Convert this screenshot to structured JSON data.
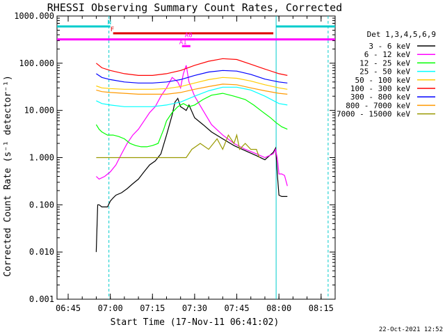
{
  "chart_data": {
    "type": "line",
    "title": "RHESSI Observing Summary Count Rates, Corrected",
    "xlabel": "Start Time (17-Nov-11 06:41:02)",
    "ylabel": "Corrected Count Rate (s⁻¹ detector⁻¹)",
    "yscale": "log",
    "ylim": [
      0.001,
      1000
    ],
    "xlim": [
      "06:41:02",
      "08:20:00"
    ],
    "x_ticks": [
      "06:45",
      "07:00",
      "07:15",
      "07:30",
      "07:45",
      "08:00",
      "08:15"
    ],
    "y_ticks": [
      "0.001",
      "0.010",
      "0.100",
      "1.000",
      "10.000",
      "100.000",
      "1000.000"
    ],
    "legend_title": "Det 1,3,4,5,6,9",
    "legend_position": "right",
    "footer_date": "22-Oct-2021 12:52",
    "series": [
      {
        "name": "3 - 6 keV",
        "color": "#000000",
        "x": [
          "06:55:00",
          "06:55:30",
          "06:56:00",
          "06:57:00",
          "06:58:00",
          "06:59:00",
          "07:00:00",
          "07:01:00",
          "07:02:00",
          "07:04:00",
          "07:06:00",
          "07:08:00",
          "07:10:00",
          "07:12:00",
          "07:14:00",
          "07:16:00",
          "07:18:00",
          "07:20:00",
          "07:22:00",
          "07:23:00",
          "07:24:00",
          "07:25:00",
          "07:26:00",
          "07:27:00",
          "07:28:00",
          "07:30:00",
          "07:33:00",
          "07:36:00",
          "07:40:00",
          "07:44:00",
          "07:48:00",
          "07:52:00",
          "07:55:00",
          "07:58:00",
          "07:58:50",
          "07:59:30",
          "08:00:00",
          "08:01:00",
          "08:02:00",
          "08:03:00"
        ],
        "y": [
          0.01,
          0.1,
          0.1,
          0.09,
          0.09,
          0.09,
          0.12,
          0.14,
          0.16,
          0.18,
          0.22,
          0.28,
          0.35,
          0.5,
          0.7,
          0.85,
          1.2,
          3,
          8,
          15,
          18,
          12,
          11,
          10,
          13,
          7,
          5,
          3.5,
          2.5,
          1.8,
          1.4,
          1.1,
          0.9,
          1.3,
          1.6,
          0.4,
          0.16,
          0.15,
          0.15,
          0.15
        ]
      },
      {
        "name": "6 - 12 keV",
        "color": "#ff00ff",
        "x": [
          "06:55:00",
          "06:56:00",
          "06:58:00",
          "07:00:00",
          "07:02:00",
          "07:04:00",
          "07:06:00",
          "07:08:00",
          "07:10:00",
          "07:12:00",
          "07:14:00",
          "07:16:00",
          "07:18:00",
          "07:20:00",
          "07:22:00",
          "07:24:00",
          "07:25:00",
          "07:26:00",
          "07:27:00",
          "07:28:00",
          "07:30:00",
          "07:33:00",
          "07:36:00",
          "07:40:00",
          "07:44:00",
          "07:48:00",
          "07:52:00",
          "07:55:00",
          "07:58:00",
          "07:58:50",
          "07:59:30",
          "08:00:00",
          "08:01:00",
          "08:02:00",
          "08:03:00"
        ],
        "y": [
          0.4,
          0.35,
          0.4,
          0.5,
          0.7,
          1.2,
          2,
          3,
          4,
          6,
          9,
          12,
          20,
          30,
          50,
          40,
          30,
          60,
          90,
          40,
          20,
          10,
          5,
          3,
          2,
          1.5,
          1.2,
          1,
          1.2,
          1.5,
          0.9,
          0.45,
          0.45,
          0.42,
          0.25
        ]
      },
      {
        "name": "12 - 25 keV",
        "color": "#00ff00",
        "x": [
          "06:55:00",
          "06:56:00",
          "06:57:00",
          "06:59:00",
          "07:01:00",
          "07:03:00",
          "07:05:00",
          "07:07:00",
          "07:09:00",
          "07:11:00",
          "07:13:00",
          "07:15:00",
          "07:17:00",
          "07:19:00",
          "07:20:00",
          "07:22:00",
          "07:24:00",
          "07:26:00",
          "07:28:00",
          "07:30:00",
          "07:33:00",
          "07:36:00",
          "07:40:00",
          "07:44:00",
          "07:48:00",
          "07:51:00",
          "07:54:00",
          "07:57:00",
          "07:59:00",
          "08:01:00",
          "08:03:00"
        ],
        "y": [
          5,
          4,
          3.5,
          3,
          3,
          2.8,
          2.5,
          2,
          1.8,
          1.7,
          1.7,
          1.8,
          2,
          4,
          6,
          9,
          12,
          14,
          12,
          13,
          17,
          21,
          23,
          20,
          17,
          13,
          9.5,
          7,
          5.5,
          4.5,
          4
        ]
      },
      {
        "name": "25 - 50 keV",
        "color": "#00ffff",
        "x": [
          "06:55:00",
          "06:57:00",
          "07:00:00",
          "07:05:00",
          "07:10:00",
          "07:15:00",
          "07:20:00",
          "07:25:00",
          "07:30:00",
          "07:35:00",
          "07:40:00",
          "07:45:00",
          "07:50:00",
          "07:55:00",
          "08:00:00",
          "08:03:00"
        ],
        "y": [
          16,
          14,
          13,
          12,
          12,
          12,
          13,
          15,
          20,
          26,
          31,
          31,
          27,
          20,
          14,
          13
        ]
      },
      {
        "name": "50 - 100 keV",
        "color": "#ffcc00",
        "x": [
          "06:55:00",
          "06:57:00",
          "07:00:00",
          "07:05:00",
          "07:10:00",
          "07:15:00",
          "07:20:00",
          "07:25:00",
          "07:30:00",
          "07:35:00",
          "07:40:00",
          "07:45:00",
          "07:50:00",
          "07:55:00",
          "08:00:00",
          "08:03:00"
        ],
        "y": [
          33,
          30,
          29,
          28,
          28,
          28,
          29,
          32,
          38,
          45,
          50,
          48,
          42,
          35,
          30,
          28
        ]
      },
      {
        "name": "100 - 300 keV",
        "color": "#ff0000",
        "x": [
          "06:55:00",
          "06:57:00",
          "07:00:00",
          "07:05:00",
          "07:10:00",
          "07:15:00",
          "07:20:00",
          "07:25:00",
          "07:30:00",
          "07:35:00",
          "07:40:00",
          "07:45:00",
          "07:50:00",
          "07:55:00",
          "08:00:00",
          "08:03:00"
        ],
        "y": [
          100,
          80,
          70,
          60,
          55,
          55,
          60,
          70,
          90,
          110,
          125,
          120,
          95,
          75,
          60,
          55
        ]
      },
      {
        "name": "300 - 800 keV",
        "color": "#0000ff",
        "x": [
          "06:55:00",
          "06:57:00",
          "07:00:00",
          "07:05:00",
          "07:10:00",
          "07:15:00",
          "07:20:00",
          "07:25:00",
          "07:30:00",
          "07:35:00",
          "07:40:00",
          "07:45:00",
          "07:50:00",
          "07:55:00",
          "08:00:00",
          "08:03:00"
        ],
        "y": [
          60,
          50,
          45,
          40,
          38,
          38,
          40,
          45,
          55,
          65,
          70,
          68,
          58,
          46,
          40,
          38
        ]
      },
      {
        "name": "800 - 7000 keV",
        "color": "#ff9900",
        "x": [
          "06:55:00",
          "06:57:00",
          "07:00:00",
          "07:05:00",
          "07:10:00",
          "07:15:00",
          "07:20:00",
          "07:25:00",
          "07:30:00",
          "07:35:00",
          "07:40:00",
          "07:45:00",
          "07:50:00",
          "07:55:00",
          "08:00:00",
          "08:03:00"
        ],
        "y": [
          27,
          25,
          24,
          23,
          22,
          22,
          22,
          24,
          28,
          32,
          36,
          35,
          30,
          26,
          23,
          22
        ]
      },
      {
        "name": "7000 - 15000 keV",
        "color": "#999900",
        "x": [
          "06:55:00",
          "06:58:00",
          "07:00:00",
          "07:27:00",
          "07:29:00",
          "07:32:00",
          "07:35:00",
          "07:38:00",
          "07:40:00",
          "07:42:00",
          "07:44:00",
          "07:45:00",
          "07:46:00",
          "07:48:00",
          "07:50:00",
          "07:52:00",
          "07:53:00"
        ],
        "y": [
          1,
          1,
          1,
          1,
          1.5,
          2,
          1.5,
          2.5,
          1.5,
          3,
          2,
          3,
          1.5,
          2,
          1.5,
          1.5,
          1
        ]
      }
    ],
    "annotations": [
      {
        "label": "N",
        "color": "#00cccc",
        "intervals": [
          [
            "06:41:02",
            "07:00:00"
          ],
          [
            "07:59:00",
            "08:20:00"
          ]
        ],
        "y": 600
      },
      {
        "label": "F",
        "color": "#dd0000",
        "intervals": [
          [
            "07:01:00",
            "07:58:00"
          ]
        ],
        "y": 430
      },
      {
        "label": "",
        "color": "#ff00ff",
        "intervals": [
          [
            "06:41:02",
            "08:20:00"
          ]
        ],
        "y": 320
      },
      {
        "label": "A1",
        "color": "#ff00ff",
        "intervals": [
          [
            "07:25:30",
            "07:28:30"
          ]
        ],
        "y": 230
      },
      {
        "label": "A0",
        "color": "#ff00ff",
        "intervals": [
          [
            "07:27:30",
            "07:30:00"
          ]
        ],
        "y": 320
      }
    ],
    "vlines": [
      {
        "x": "06:59:30",
        "color": "#00cccc",
        "style": "dashed"
      },
      {
        "x": "07:59:00",
        "color": "#00cccc",
        "style": "solid"
      },
      {
        "x": "08:17:30",
        "color": "#00cccc",
        "style": "dashed"
      }
    ]
  }
}
